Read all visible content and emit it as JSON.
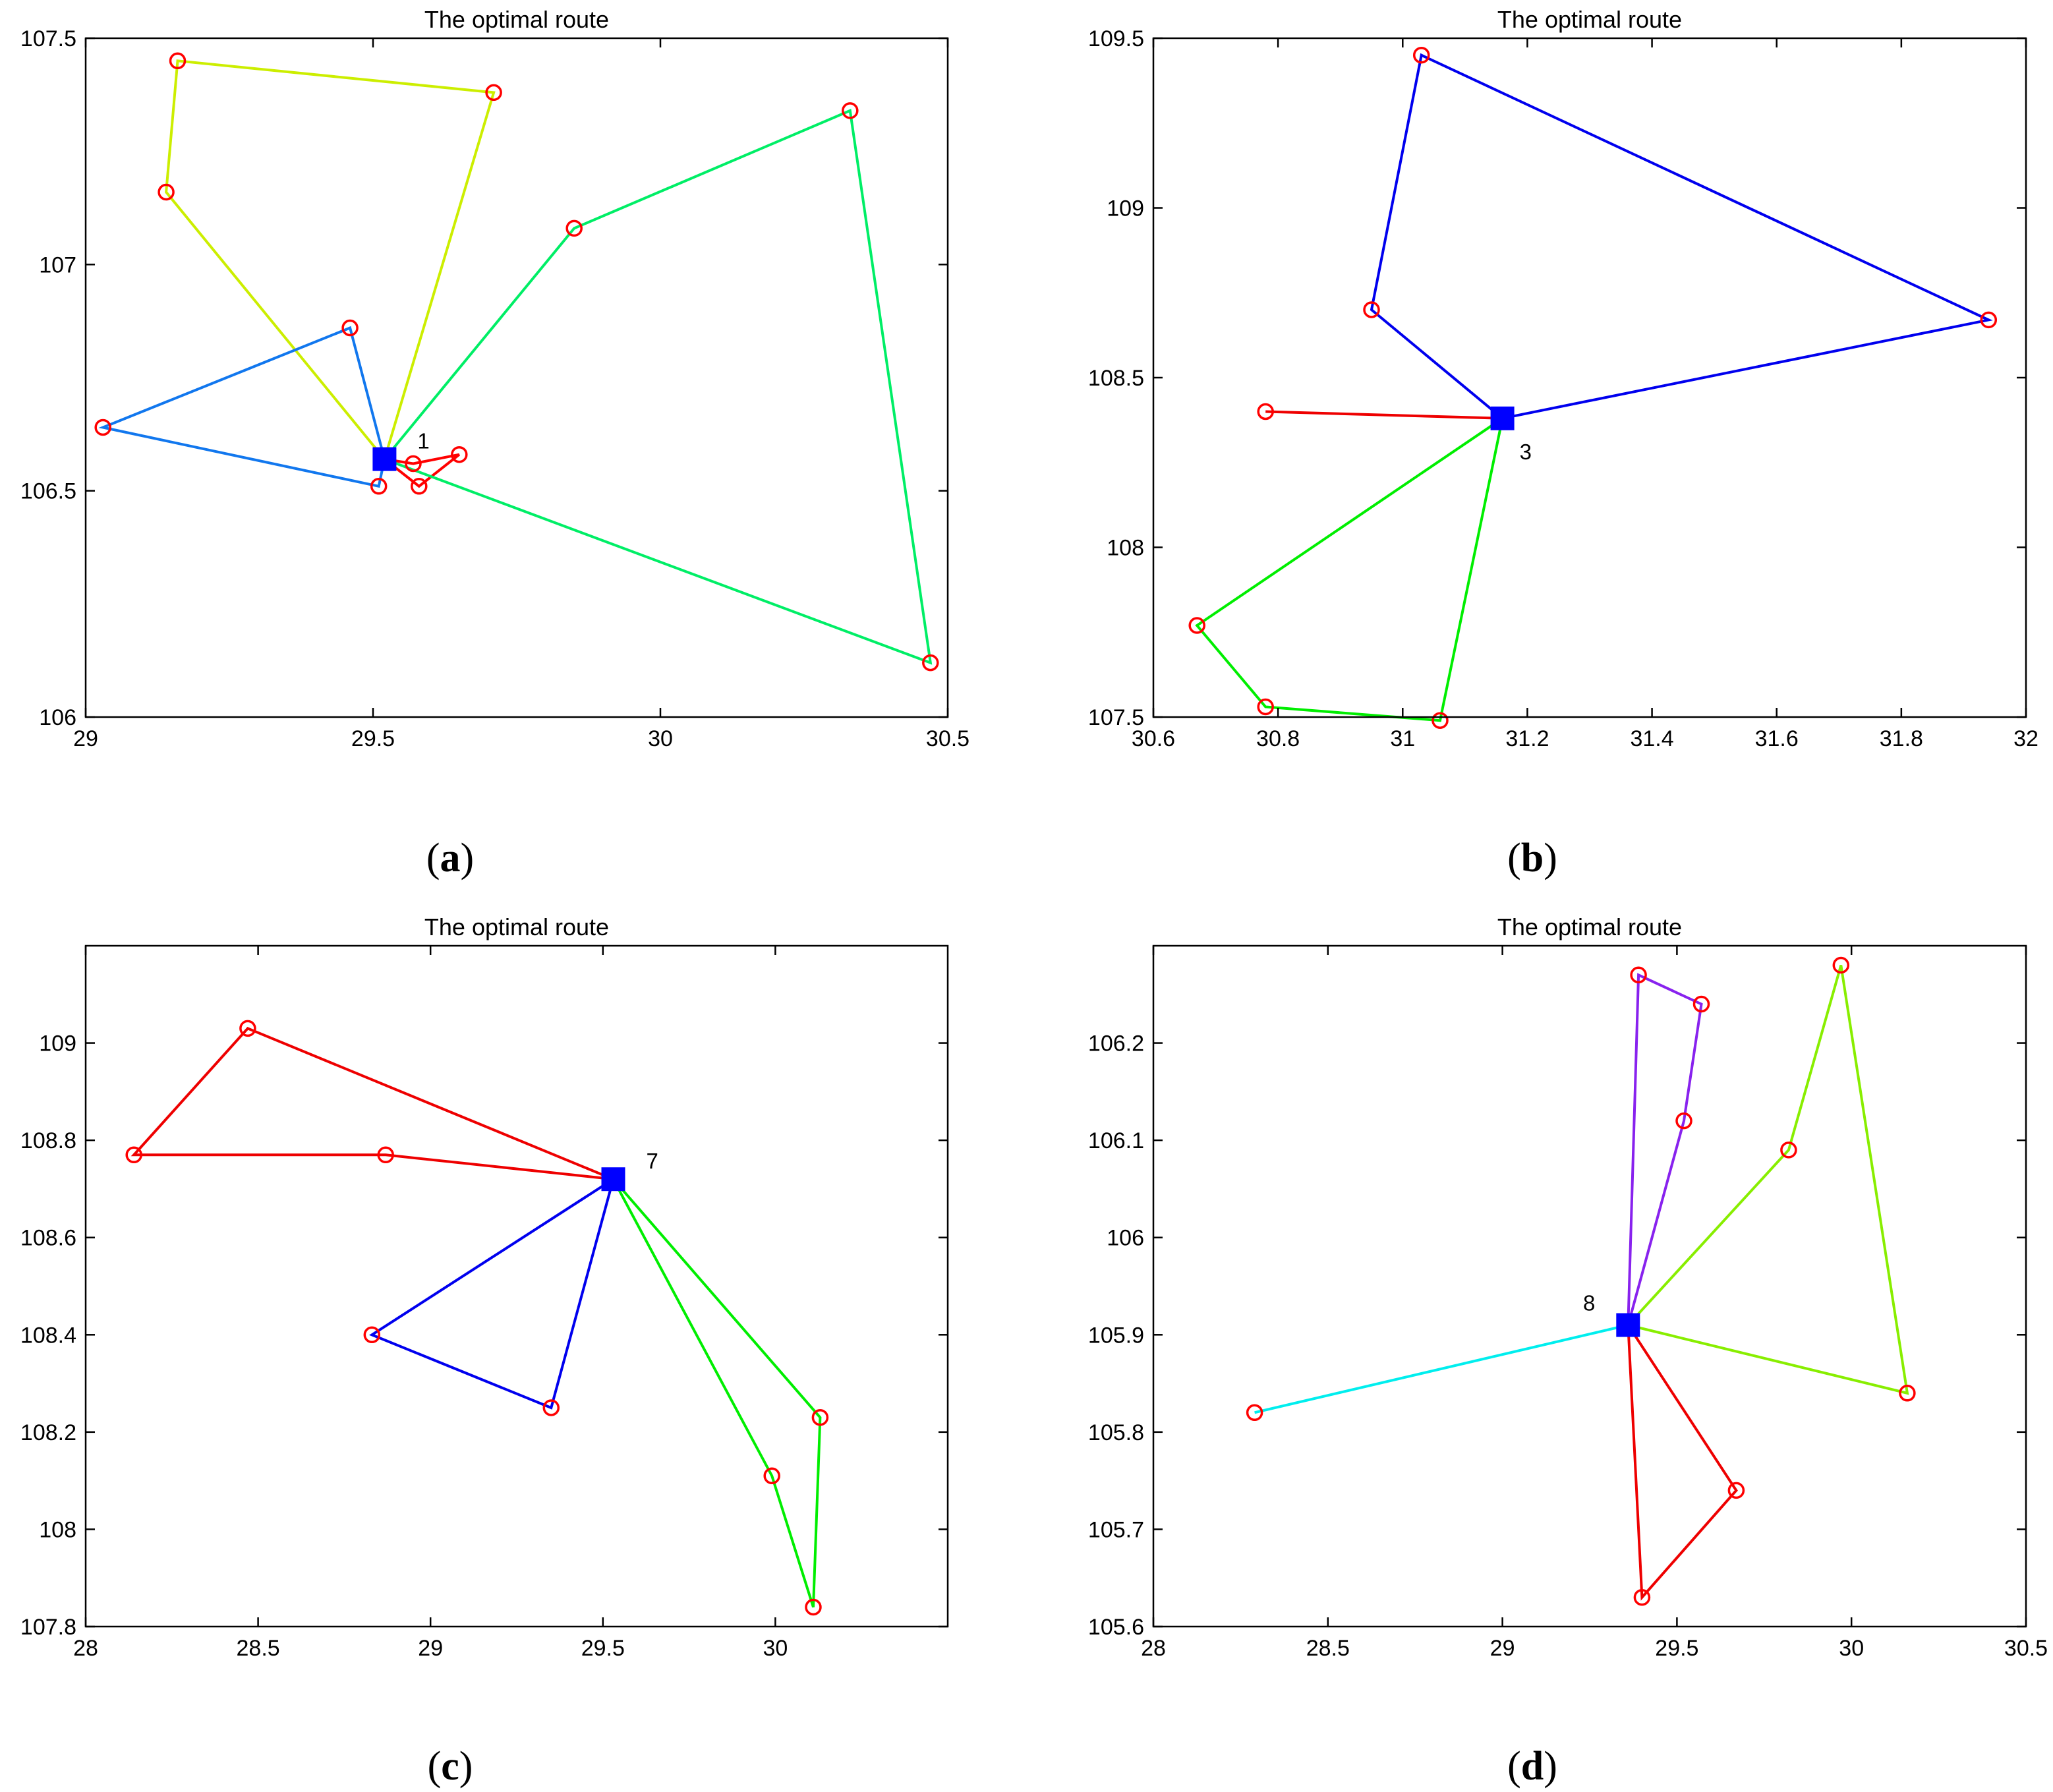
{
  "chart_data": [
    {
      "type": "scatter",
      "panel_label": "a",
      "title": "The optimal route",
      "xlabel": "",
      "ylabel": "",
      "xlim": [
        29,
        30.5
      ],
      "ylim": [
        106,
        107.5
      ],
      "xticks": [
        29,
        29.5,
        30,
        30.5
      ],
      "xtick_labels": [
        "29",
        "29.5",
        "30",
        "30.5"
      ],
      "yticks": [
        106,
        106.5,
        107,
        107.5
      ],
      "ytick_labels": [
        "106",
        "106.5",
        "107",
        "107.5"
      ],
      "grid": false,
      "depot": {
        "label": "1",
        "x": 29.52,
        "y": 106.57,
        "label_side": "upper-right"
      },
      "customers": [
        {
          "x": 29.57,
          "y": 106.56
        },
        {
          "x": 29.65,
          "y": 106.58
        },
        {
          "x": 29.58,
          "y": 106.51
        },
        {
          "x": 29.16,
          "y": 107.45
        },
        {
          "x": 29.71,
          "y": 107.38
        },
        {
          "x": 29.14,
          "y": 107.16
        },
        {
          "x": 29.46,
          "y": 106.86
        },
        {
          "x": 29.03,
          "y": 106.64
        },
        {
          "x": 29.51,
          "y": 106.51
        },
        {
          "x": 29.85,
          "y": 107.08
        },
        {
          "x": 30.33,
          "y": 107.34
        },
        {
          "x": 30.47,
          "y": 106.12
        }
      ],
      "routes": [
        {
          "color": "#ff0000",
          "points": [
            [
              29.52,
              106.57
            ],
            [
              29.57,
              106.56
            ],
            [
              29.65,
              106.58
            ],
            [
              29.58,
              106.51
            ],
            [
              29.52,
              106.57
            ]
          ]
        },
        {
          "color": "#ccee00",
          "points": [
            [
              29.52,
              106.57
            ],
            [
              29.71,
              107.38
            ],
            [
              29.16,
              107.45
            ],
            [
              29.14,
              107.16
            ],
            [
              29.52,
              106.57
            ]
          ]
        },
        {
          "color": "#1177ee",
          "points": [
            [
              29.52,
              106.57
            ],
            [
              29.46,
              106.86
            ],
            [
              29.03,
              106.64
            ],
            [
              29.51,
              106.51
            ],
            [
              29.52,
              106.57
            ]
          ]
        },
        {
          "color": "#00ee66",
          "points": [
            [
              29.52,
              106.57
            ],
            [
              29.85,
              107.08
            ],
            [
              30.33,
              107.34
            ],
            [
              30.47,
              106.12
            ],
            [
              29.52,
              106.57
            ]
          ]
        }
      ]
    },
    {
      "type": "scatter",
      "panel_label": "b",
      "title": "The optimal route",
      "xlabel": "",
      "ylabel": "",
      "xlim": [
        30.6,
        32
      ],
      "ylim": [
        107.5,
        109.5
      ],
      "xticks": [
        30.6,
        30.8,
        31,
        31.2,
        31.4,
        31.6,
        31.8,
        32
      ],
      "xtick_labels": [
        "30.6",
        "30.8",
        "31",
        "31.2",
        "31.4",
        "31.6",
        "31.8",
        "32"
      ],
      "yticks": [
        107.5,
        108,
        108.5,
        109,
        109.5
      ],
      "ytick_labels": [
        "107.5",
        "108",
        "108.5",
        "109",
        "109.5"
      ],
      "grid": false,
      "depot": {
        "label": "3",
        "x": 31.16,
        "y": 108.38,
        "label_side": "lower-right"
      },
      "customers": [
        {
          "x": 31.03,
          "y": 109.45
        },
        {
          "x": 30.95,
          "y": 108.7
        },
        {
          "x": 31.94,
          "y": 108.67
        },
        {
          "x": 30.78,
          "y": 108.4
        },
        {
          "x": 30.67,
          "y": 107.77
        },
        {
          "x": 30.78,
          "y": 107.53
        },
        {
          "x": 31.06,
          "y": 107.49
        }
      ],
      "routes": [
        {
          "color": "#0000ee",
          "points": [
            [
              31.16,
              108.38
            ],
            [
              30.95,
              108.7
            ],
            [
              31.03,
              109.45
            ],
            [
              31.94,
              108.67
            ],
            [
              31.16,
              108.38
            ]
          ]
        },
        {
          "color": "#ee0000",
          "points": [
            [
              31.16,
              108.38
            ],
            [
              30.78,
              108.4
            ]
          ]
        },
        {
          "color": "#00ee00",
          "points": [
            [
              31.16,
              108.38
            ],
            [
              30.67,
              107.77
            ],
            [
              30.78,
              107.53
            ],
            [
              31.06,
              107.49
            ],
            [
              31.16,
              108.38
            ]
          ]
        }
      ]
    },
    {
      "type": "scatter",
      "panel_label": "c",
      "title": "The optimal route",
      "xlabel": "",
      "ylabel": "",
      "xlim": [
        28,
        30.5
      ],
      "ylim": [
        107.8,
        109.2
      ],
      "xticks": [
        28,
        28.5,
        29,
        29.5,
        30
      ],
      "xtick_labels": [
        "28",
        "28.5",
        "29",
        "29.5",
        "30"
      ],
      "yticks": [
        107.8,
        108,
        108.2,
        108.4,
        108.6,
        108.8,
        109
      ],
      "ytick_labels": [
        "107.8",
        "108",
        "108.2",
        "108.4",
        "108.6",
        "108.8",
        "109"
      ],
      "grid": false,
      "depot": {
        "label": "7",
        "x": 29.53,
        "y": 108.72,
        "label_side": "upper-right"
      },
      "customers": [
        {
          "x": 28.47,
          "y": 109.03
        },
        {
          "x": 28.14,
          "y": 108.77
        },
        {
          "x": 28.87,
          "y": 108.77
        },
        {
          "x": 28.83,
          "y": 108.4
        },
        {
          "x": 29.35,
          "y": 108.25
        },
        {
          "x": 30.13,
          "y": 108.23
        },
        {
          "x": 29.99,
          "y": 108.11
        },
        {
          "x": 30.11,
          "y": 107.84
        }
      ],
      "routes": [
        {
          "color": "#ee0000",
          "points": [
            [
              29.53,
              108.72
            ],
            [
              28.47,
              109.03
            ],
            [
              28.14,
              108.77
            ],
            [
              28.87,
              108.77
            ],
            [
              29.53,
              108.72
            ]
          ]
        },
        {
          "color": "#0000ee",
          "points": [
            [
              29.53,
              108.72
            ],
            [
              28.83,
              108.4
            ],
            [
              29.35,
              108.25
            ],
            [
              29.53,
              108.72
            ]
          ]
        },
        {
          "color": "#00ee00",
          "points": [
            [
              29.53,
              108.72
            ],
            [
              30.13,
              108.23
            ],
            [
              30.11,
              107.84
            ],
            [
              29.99,
              108.11
            ],
            [
              29.53,
              108.72
            ]
          ]
        }
      ]
    },
    {
      "type": "scatter",
      "panel_label": "d",
      "title": "The optimal route",
      "xlabel": "",
      "ylabel": "",
      "xlim": [
        28,
        30.5
      ],
      "ylim": [
        105.6,
        106.3
      ],
      "xticks": [
        28,
        28.5,
        29,
        29.5,
        30,
        30.5
      ],
      "xtick_labels": [
        "28",
        "28.5",
        "29",
        "29.5",
        "30",
        "30.5"
      ],
      "yticks": [
        105.6,
        105.7,
        105.8,
        105.9,
        106,
        106.1,
        106.2
      ],
      "ytick_labels": [
        "105.6",
        "105.7",
        "105.8",
        "105.9",
        "106",
        "106.1",
        "106.2"
      ],
      "grid": false,
      "depot": {
        "label": "8",
        "x": 29.36,
        "y": 105.91,
        "label_side": "upper-left"
      },
      "customers": [
        {
          "x": 29.39,
          "y": 106.27
        },
        {
          "x": 29.57,
          "y": 106.24
        },
        {
          "x": 29.52,
          "y": 106.12
        },
        {
          "x": 29.97,
          "y": 106.28
        },
        {
          "x": 29.82,
          "y": 106.09
        },
        {
          "x": 30.16,
          "y": 105.84
        },
        {
          "x": 28.29,
          "y": 105.82
        },
        {
          "x": 29.67,
          "y": 105.74
        },
        {
          "x": 29.4,
          "y": 105.63
        }
      ],
      "routes": [
        {
          "color": "#8822ee",
          "points": [
            [
              29.36,
              105.91
            ],
            [
              29.39,
              106.27
            ],
            [
              29.57,
              106.24
            ],
            [
              29.52,
              106.12
            ],
            [
              29.36,
              105.91
            ]
          ]
        },
        {
          "color": "#88ee00",
          "points": [
            [
              29.36,
              105.91
            ],
            [
              29.82,
              106.09
            ],
            [
              29.97,
              106.28
            ],
            [
              30.16,
              105.84
            ],
            [
              29.36,
              105.91
            ]
          ]
        },
        {
          "color": "#00eeee",
          "points": [
            [
              29.36,
              105.91
            ],
            [
              28.29,
              105.82
            ]
          ]
        },
        {
          "color": "#ee0000",
          "points": [
            [
              29.36,
              105.91
            ],
            [
              29.67,
              105.74
            ],
            [
              29.4,
              105.63
            ],
            [
              29.36,
              105.91
            ]
          ]
        }
      ]
    }
  ]
}
